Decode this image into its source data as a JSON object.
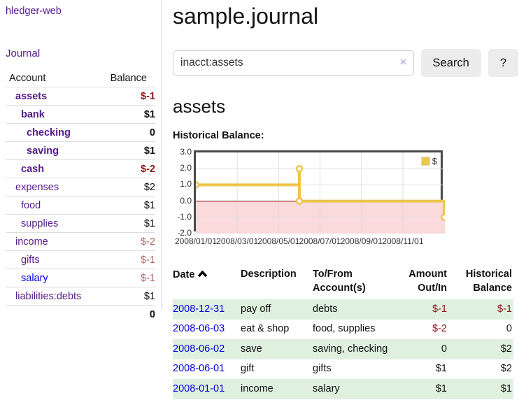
{
  "sidebar": {
    "brand": "hledger-web",
    "nav_journal": "Journal",
    "accounts_table": {
      "col_account": "Account",
      "col_balance": "Balance",
      "rows": [
        {
          "name": "assets",
          "indent": 1,
          "bold": true,
          "link_color": "purple",
          "balance": "$-1",
          "balance_style": "neg-strong"
        },
        {
          "name": "bank",
          "indent": 2,
          "bold": true,
          "link_color": "purple",
          "balance": "$1",
          "balance_style": "strong"
        },
        {
          "name": "checking",
          "indent": 3,
          "bold": true,
          "link_color": "purple",
          "balance": "0",
          "balance_style": "strong"
        },
        {
          "name": "saving",
          "indent": 3,
          "bold": true,
          "link_color": "purple",
          "balance": "$1",
          "balance_style": "strong"
        },
        {
          "name": "cash",
          "indent": 2,
          "bold": true,
          "link_color": "purple",
          "balance": "$-2",
          "balance_style": "neg-strong"
        },
        {
          "name": "expenses",
          "indent": 1,
          "bold": false,
          "link_color": "purple",
          "balance": "$2",
          "balance_style": "plain"
        },
        {
          "name": "food",
          "indent": 2,
          "bold": false,
          "link_color": "purple",
          "balance": "$1",
          "balance_style": "plain"
        },
        {
          "name": "supplies",
          "indent": 2,
          "bold": false,
          "link_color": "purple",
          "balance": "$1",
          "balance_style": "plain"
        },
        {
          "name": "income",
          "indent": 1,
          "bold": false,
          "link_color": "purple",
          "balance": "$-2",
          "balance_style": "neg-light"
        },
        {
          "name": "gifts",
          "indent": 2,
          "bold": false,
          "link_color": "purple",
          "balance": "$-1",
          "balance_style": "neg-light"
        },
        {
          "name": "salary",
          "indent": 2,
          "bold": false,
          "link_color": "blue",
          "balance": "$-1",
          "balance_style": "neg-light"
        },
        {
          "name": "liabilities:debts",
          "indent": 1,
          "bold": false,
          "link_color": "purple",
          "balance": "$1",
          "balance_style": "plain"
        }
      ],
      "total": "0"
    }
  },
  "main": {
    "title": "sample.journal",
    "search": {
      "value": "inacct:assets",
      "clear_icon": "×",
      "button_label": "Search",
      "help_label": "?"
    },
    "account_heading": "assets",
    "chart_title": "Historical Balance:"
  },
  "chart_data": {
    "type": "line",
    "title": "Historical Balance",
    "legend": {
      "label": "$",
      "position": "top-right"
    },
    "series": [
      {
        "name": "$",
        "color": "#ecc54b",
        "points_date_value": [
          [
            "2008-01-01",
            1
          ],
          [
            "2008-06-01",
            2
          ],
          [
            "2008-06-03",
            0
          ],
          [
            "2008-12-31",
            -1
          ]
        ]
      }
    ],
    "step_path_months": [
      [
        0,
        1
      ],
      [
        5,
        1
      ],
      [
        5,
        2
      ],
      [
        5,
        0
      ],
      [
        12,
        0
      ],
      [
        12,
        -1
      ]
    ],
    "markers_months": [
      [
        0,
        1
      ],
      [
        5,
        2
      ],
      [
        5,
        0
      ],
      [
        12,
        -1
      ]
    ],
    "xlim_months": [
      0,
      12.03
    ],
    "ylim": [
      -2,
      3
    ],
    "y_ticks": [
      "3.0",
      "2.0",
      "1.0",
      "0.0",
      "-1.0",
      "-2.0"
    ],
    "y_tick_values": [
      3,
      2,
      1,
      0,
      -1,
      -2
    ],
    "x_tick_labels": [
      "2008/01/01",
      "2008/03/01",
      "2008/05/01",
      "2008/07/01",
      "2008/09/01",
      "2008/11/01"
    ],
    "x_tick_months": [
      0,
      2,
      4,
      6,
      8,
      10
    ],
    "grid": true,
    "negative_region_color": "#fadada",
    "zero_line_color": "#8b0000",
    "gridline_color": "#dcdcdc",
    "border_color": "#4a4a4a"
  },
  "register": {
    "headers": {
      "date": "Date",
      "description": "Description",
      "tofrom_line1": "To/From",
      "tofrom_line2": "Account(s)",
      "amount_line1": "Amount",
      "amount_line2": "Out/In",
      "balance_line1": "Historical",
      "balance_line2": "Balance"
    },
    "sort_icon": "chevron-up",
    "rows": [
      {
        "date": "2008-12-31",
        "description": "pay off",
        "accounts": "debts",
        "amount": "$-1",
        "amount_neg": true,
        "balance": "$-1",
        "balance_neg": true,
        "stripe": true
      },
      {
        "date": "2008-06-03",
        "description": "eat & shop",
        "accounts": "food, supplies",
        "amount": "$-2",
        "amount_neg": true,
        "balance": "0",
        "balance_neg": false,
        "stripe": false
      },
      {
        "date": "2008-06-02",
        "description": "save",
        "accounts": "saving, checking",
        "amount": "0",
        "amount_neg": false,
        "balance": "$2",
        "balance_neg": false,
        "stripe": true
      },
      {
        "date": "2008-06-01",
        "description": "gift",
        "accounts": "gifts",
        "amount": "$1",
        "amount_neg": false,
        "balance": "$2",
        "balance_neg": false,
        "stripe": false
      },
      {
        "date": "2008-01-01",
        "description": "income",
        "accounts": "salary",
        "amount": "$1",
        "amount_neg": false,
        "balance": "$1",
        "balance_neg": false,
        "stripe": true
      }
    ]
  }
}
